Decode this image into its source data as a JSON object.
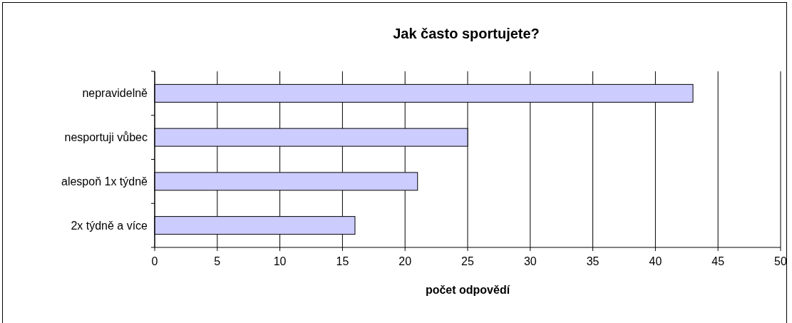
{
  "chart_data": {
    "type": "bar",
    "title": "Jak často sportujete?",
    "xlabel": "počet odpovědí",
    "orientation": "horizontal",
    "categories": [
      "nepravidelně",
      "nesportuji vůbec",
      "alespoň 1x týdně",
      "2x týdně a více"
    ],
    "values": [
      43,
      25,
      21,
      16
    ],
    "color": "#ccccff",
    "xlim": [
      0,
      50
    ],
    "xticks": [
      0,
      5,
      10,
      15,
      20,
      25,
      30,
      35,
      40,
      45,
      50
    ],
    "grid": "x"
  }
}
